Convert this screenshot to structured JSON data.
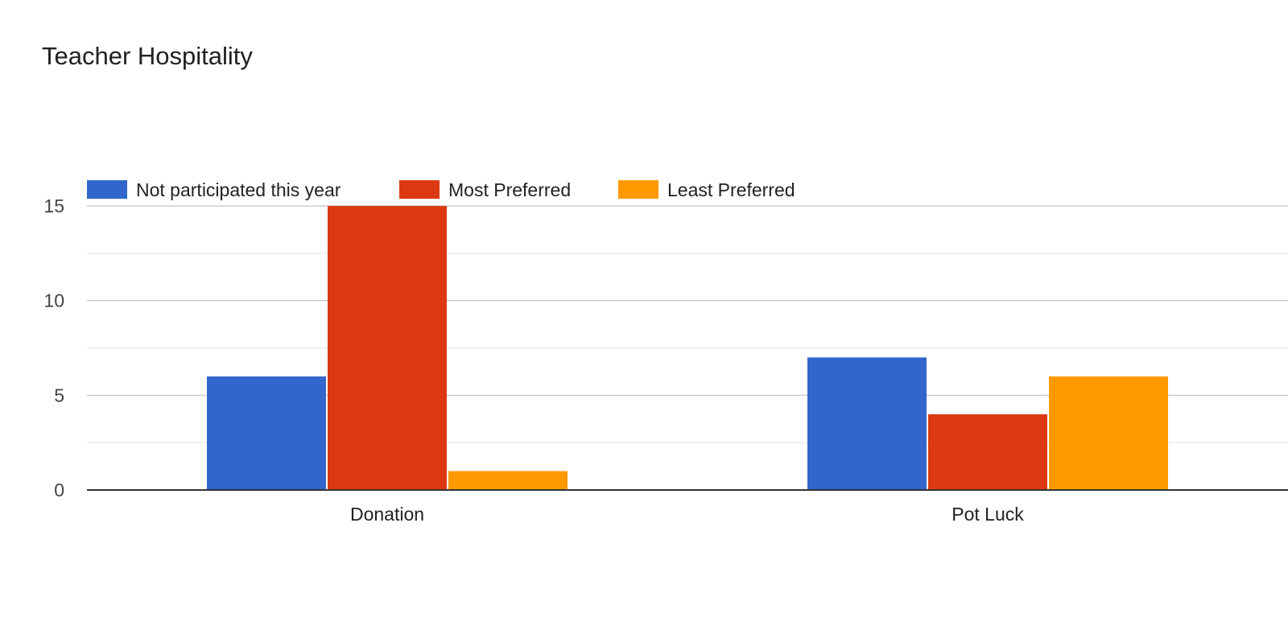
{
  "chart_data": {
    "type": "bar",
    "title": "Teacher Hospitality",
    "categories": [
      "Donation",
      "Pot Luck"
    ],
    "series": [
      {
        "name": "Not participated this year",
        "color": "#3366cc",
        "values": [
          6,
          7
        ]
      },
      {
        "name": "Most Preferred",
        "color": "#dc3912",
        "values": [
          15,
          4
        ]
      },
      {
        "name": "Least Preferred",
        "color": "#ff9900",
        "values": [
          1,
          6
        ]
      }
    ],
    "ylim": [
      0,
      15
    ],
    "yticks": [
      "0",
      "5",
      "10",
      "15"
    ],
    "grid": true,
    "legend_position": "top-left"
  }
}
